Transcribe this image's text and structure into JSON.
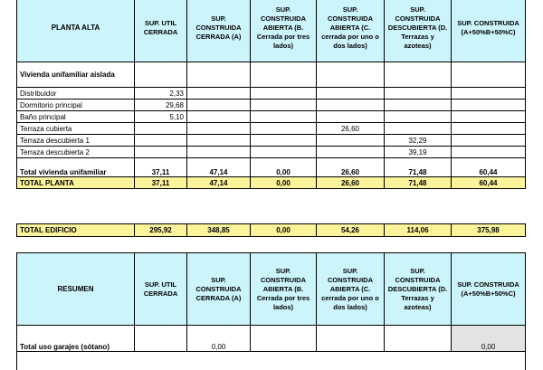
{
  "headers": {
    "planta_alta": "PLANTA  ALTA",
    "resumen": "RESUMEN",
    "sup_util": "SUP. UTIL CERRADA",
    "sup_cerrada": "SUP. CONSTRUIDA CERRADA (A)",
    "sup_abierta_b": "SUP. CONSTRUIDA ABIERTA (B. Cerrada por tres lados)",
    "sup_abierta_c": "SUP. CONSTRUIDA ABIERTA (C. cerrada por uno o dos lados)",
    "sup_descubierta": "SUP. CONSTRUIDA DESCUBIERTA (D. Terrazas y azoteas)",
    "sup_total": "SUP. CONSTRUIDA (A+50%B+50%C)"
  },
  "section_label": "Vivienda unifamiliar aislada",
  "rows": [
    {
      "label": "Distribuidor",
      "util": "2,33",
      "a": "",
      "b": "",
      "c": "",
      "d": "",
      "total": ""
    },
    {
      "label": "Dormitorio principal",
      "util": "29,68",
      "a": "",
      "b": "",
      "c": "",
      "d": "",
      "total": ""
    },
    {
      "label": "Baño principal",
      "util": "5,10",
      "a": "",
      "b": "",
      "c": "",
      "d": "",
      "total": ""
    },
    {
      "label": "Terraza cubierta",
      "util": "",
      "a": "",
      "b": "",
      "c": "26,60",
      "d": "",
      "total": ""
    },
    {
      "label": "Terraza descubierta 1",
      "util": "",
      "a": "",
      "b": "",
      "c": "",
      "d": "32,29",
      "total": ""
    },
    {
      "label": "Terraza descubierta 2",
      "util": "",
      "a": "",
      "b": "",
      "c": "",
      "d": "39,19",
      "total": ""
    }
  ],
  "total_vivienda": {
    "label": "Total vivienda unifamiliar",
    "util": "37,11",
    "a": "47,14",
    "b": "0,00",
    "c": "26,60",
    "d": "71,48",
    "total": "60,44"
  },
  "total_planta": {
    "label": "TOTAL PLANTA",
    "util": "37,11",
    "a": "47,14",
    "b": "0,00",
    "c": "26,60",
    "d": "71,48",
    "total": "60,44"
  },
  "total_edificio": {
    "label": "TOTAL EDIFICIO",
    "util": "295,92",
    "a": "348,85",
    "b": "0,00",
    "c": "54,26",
    "d": "114,06",
    "total": "375,98"
  },
  "garajes": {
    "label": "Total uso garajes (sótano)",
    "util": "",
    "a": "0,00",
    "b": "",
    "c": "",
    "d": "",
    "total": "0,00"
  },
  "colors": {
    "header_bg": "#ccf4fb",
    "total_bg": "#fbf49a",
    "gray_cell": "#e3e3e3"
  }
}
